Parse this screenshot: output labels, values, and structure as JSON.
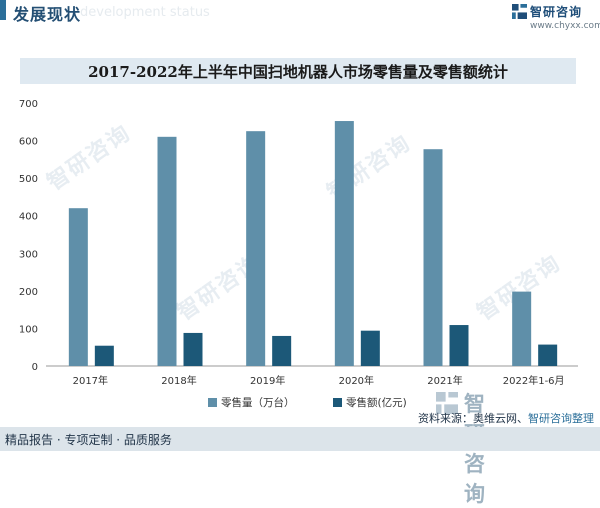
{
  "header": {
    "section_title": "发展现状",
    "ghost_text": "development status"
  },
  "logo": {
    "name": "智研咨询",
    "url": "www.chyxx.com"
  },
  "watermark": {
    "text": "智研咨询"
  },
  "chart_data": {
    "type": "bar",
    "title": "2017-2022年上半年中国扫地机器人市场零售量及零售额统计",
    "categories": [
      "2017年",
      "2018年",
      "2019年",
      "2020年",
      "2021年",
      "2022年1-6月"
    ],
    "series": [
      {
        "name": "零售量（万台）",
        "values": [
          420,
          610,
          625,
          652,
          577,
          198
        ],
        "color": "#5f8fa9"
      },
      {
        "name": "零售额(亿元)",
        "values": [
          54,
          88,
          80,
          94,
          109,
          57
        ],
        "color": "#1c5878"
      }
    ],
    "ylim": [
      0,
      700
    ],
    "yticks": [
      0,
      100,
      200,
      300,
      400,
      500,
      600,
      700
    ],
    "grid": false,
    "legend": "bottom"
  },
  "footer": {
    "tags": "精品报告 · 专项定制 · 品质服务",
    "source_label": "资料来源：奥维云网、",
    "source_brand": "智研咨询整理"
  }
}
